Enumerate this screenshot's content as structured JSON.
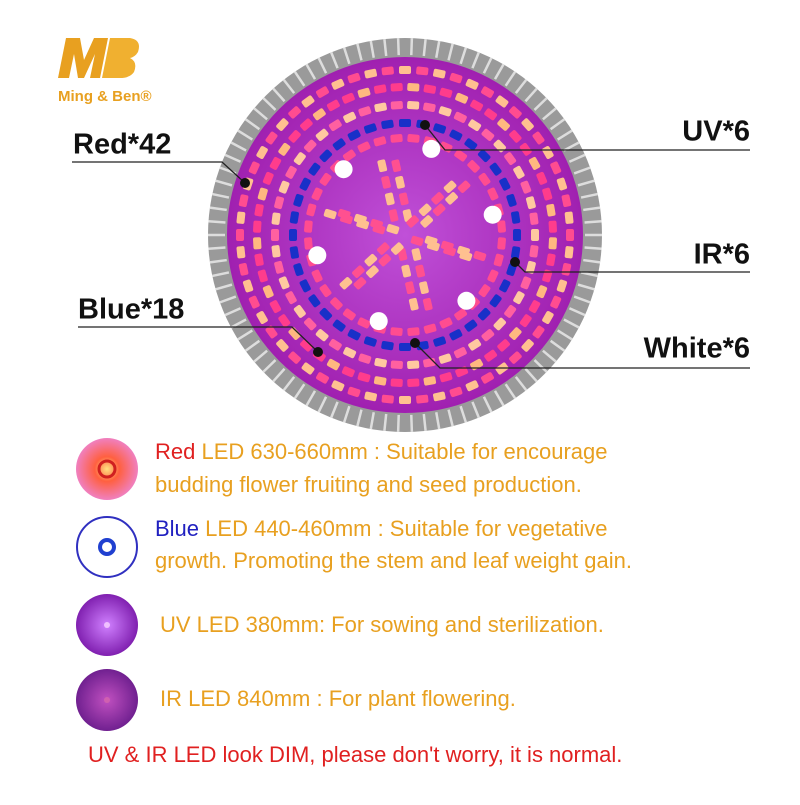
{
  "logo": {
    "brand": "Ming & Ben®"
  },
  "callouts": [
    "Red*42",
    "UV*6",
    "IR*6",
    "Blue*18",
    "White*6"
  ],
  "legend": [
    {
      "name": "Red",
      "line1": "LED 630-660mm : Suitable for encourage",
      "line2": "budding flower fruiting and seed production."
    },
    {
      "name": "Blue",
      "line1": "LED 440-460mm : Suitable for vegetative",
      "line2": "growth. Promoting the stem and leaf weight gain."
    },
    {
      "line1": "UV LED 380mm: For sowing and sterilization."
    },
    {
      "line1": "IR LED 840mm : For plant flowering."
    }
  ],
  "note": "UV & IR LED look DIM, please don't worry, it is normal."
}
